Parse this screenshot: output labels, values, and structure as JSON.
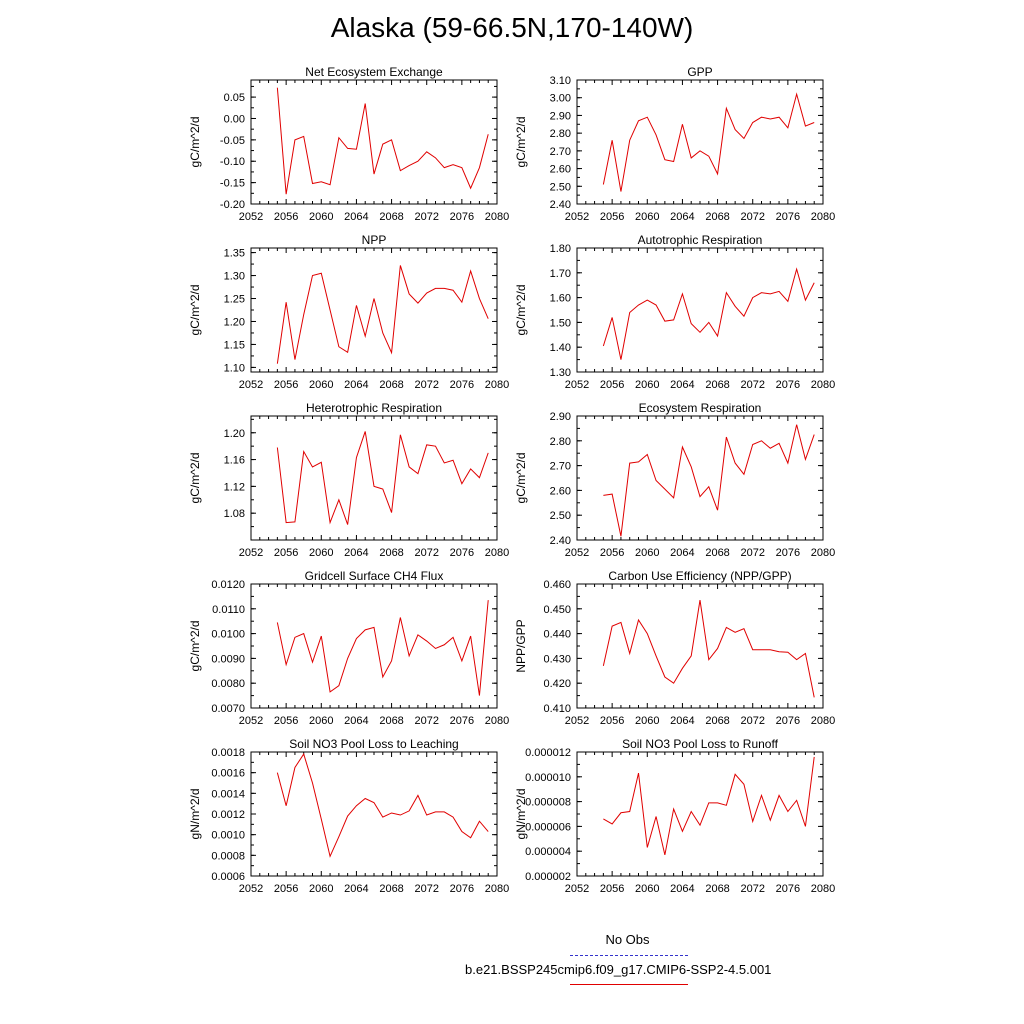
{
  "page": {
    "title": "Alaska (59-66.5N,170-140W)"
  },
  "legend": {
    "entries": [
      {
        "label": "No Obs",
        "color": "#3333cc",
        "style": "dashed"
      },
      {
        "label": "b.e21.BSSP245cmip6.f09_g17.CMIP6-SSP2-4.5.001",
        "color": "#e00000",
        "style": "solid"
      }
    ]
  },
  "chart_data": [
    {
      "type": "line",
      "title": "Net Ecosystem Exchange",
      "ylabel": "gC/m^2/d",
      "xlim": [
        2052,
        2080
      ],
      "ylim": [
        -0.2,
        0.09
      ],
      "xticks": [
        "2052",
        "2056",
        "2060",
        "2064",
        "2068",
        "2072",
        "2076",
        "2080"
      ],
      "yticks": [
        "0.05",
        "0.00",
        "-0.05",
        "-0.10",
        "-0.15",
        "-0.20"
      ],
      "x": [
        2055,
        2056,
        2057,
        2058,
        2059,
        2060,
        2061,
        2062,
        2063,
        2064,
        2065,
        2066,
        2067,
        2068,
        2069,
        2070,
        2071,
        2072,
        2073,
        2074,
        2075,
        2076,
        2077,
        2078,
        2079
      ],
      "series": [
        {
          "color": "#e00000",
          "values": [
            0.072,
            -0.177,
            -0.05,
            -0.042,
            -0.152,
            -0.148,
            -0.155,
            -0.045,
            -0.07,
            -0.072,
            0.035,
            -0.13,
            -0.06,
            -0.05,
            -0.122,
            -0.11,
            -0.1,
            -0.078,
            -0.092,
            -0.115,
            -0.108,
            -0.115,
            -0.163,
            -0.115,
            -0.037
          ]
        }
      ]
    },
    {
      "type": "line",
      "title": "GPP",
      "ylabel": "gC/m^2/d",
      "xlim": [
        2052,
        2080
      ],
      "ylim": [
        2.4,
        3.1
      ],
      "xticks": [
        "2052",
        "2056",
        "2060",
        "2064",
        "2068",
        "2072",
        "2076",
        "2080"
      ],
      "yticks": [
        "3.10",
        "3.00",
        "2.90",
        "2.80",
        "2.70",
        "2.60",
        "2.50",
        "2.40"
      ],
      "x": [
        2055,
        2056,
        2057,
        2058,
        2059,
        2060,
        2061,
        2062,
        2063,
        2064,
        2065,
        2066,
        2067,
        2068,
        2069,
        2070,
        2071,
        2072,
        2073,
        2074,
        2075,
        2076,
        2077,
        2078,
        2079
      ],
      "series": [
        {
          "color": "#e00000",
          "values": [
            2.51,
            2.76,
            2.47,
            2.76,
            2.87,
            2.89,
            2.79,
            2.65,
            2.64,
            2.85,
            2.66,
            2.7,
            2.67,
            2.57,
            2.94,
            2.82,
            2.77,
            2.86,
            2.89,
            2.88,
            2.89,
            2.83,
            3.02,
            2.84,
            2.86
          ]
        }
      ]
    },
    {
      "type": "line",
      "title": "NPP",
      "ylabel": "gC/m^2/d",
      "xlim": [
        2052,
        2080
      ],
      "ylim": [
        1.09,
        1.36
      ],
      "xticks": [
        "2052",
        "2056",
        "2060",
        "2064",
        "2068",
        "2072",
        "2076",
        "2080"
      ],
      "yticks": [
        "1.35",
        "1.30",
        "1.25",
        "1.20",
        "1.15",
        "1.10"
      ],
      "x": [
        2055,
        2056,
        2057,
        2058,
        2059,
        2060,
        2061,
        2062,
        2063,
        2064,
        2065,
        2066,
        2067,
        2068,
        2069,
        2070,
        2071,
        2072,
        2073,
        2074,
        2075,
        2076,
        2077,
        2078,
        2079
      ],
      "series": [
        {
          "color": "#e00000",
          "values": [
            1.108,
            1.242,
            1.117,
            1.215,
            1.3,
            1.305,
            1.225,
            1.145,
            1.133,
            1.235,
            1.168,
            1.25,
            1.175,
            1.132,
            1.322,
            1.26,
            1.24,
            1.262,
            1.272,
            1.272,
            1.268,
            1.242,
            1.31,
            1.25,
            1.206
          ]
        }
      ]
    },
    {
      "type": "line",
      "title": "Autotrophic Respiration",
      "ylabel": "gC/m^2/d",
      "xlim": [
        2052,
        2080
      ],
      "ylim": [
        1.3,
        1.8
      ],
      "xticks": [
        "2052",
        "2056",
        "2060",
        "2064",
        "2068",
        "2072",
        "2076",
        "2080"
      ],
      "yticks": [
        "1.80",
        "1.70",
        "1.60",
        "1.50",
        "1.40",
        "1.30"
      ],
      "x": [
        2055,
        2056,
        2057,
        2058,
        2059,
        2060,
        2061,
        2062,
        2063,
        2064,
        2065,
        2066,
        2067,
        2068,
        2069,
        2070,
        2071,
        2072,
        2073,
        2074,
        2075,
        2076,
        2077,
        2078,
        2079
      ],
      "series": [
        {
          "color": "#e00000",
          "values": [
            1.405,
            1.52,
            1.35,
            1.54,
            1.57,
            1.59,
            1.57,
            1.505,
            1.51,
            1.615,
            1.495,
            1.46,
            1.5,
            1.445,
            1.62,
            1.565,
            1.525,
            1.6,
            1.62,
            1.615,
            1.625,
            1.585,
            1.715,
            1.59,
            1.66
          ]
        }
      ]
    },
    {
      "type": "line",
      "title": "Heterotrophic Respiration",
      "ylabel": "gC/m^2/d",
      "xlim": [
        2052,
        2080
      ],
      "ylim": [
        1.04,
        1.225
      ],
      "xticks": [
        "2052",
        "2056",
        "2060",
        "2064",
        "2068",
        "2072",
        "2076",
        "2080"
      ],
      "yticks": [
        "1.20",
        "1.16",
        "1.12",
        "1.08"
      ],
      "x": [
        2055,
        2056,
        2057,
        2058,
        2059,
        2060,
        2061,
        2062,
        2063,
        2064,
        2065,
        2066,
        2067,
        2068,
        2069,
        2070,
        2071,
        2072,
        2073,
        2074,
        2075,
        2076,
        2077,
        2078,
        2079
      ],
      "series": [
        {
          "color": "#e00000",
          "values": [
            1.178,
            1.066,
            1.067,
            1.172,
            1.149,
            1.156,
            1.066,
            1.1,
            1.063,
            1.163,
            1.202,
            1.12,
            1.116,
            1.081,
            1.197,
            1.149,
            1.139,
            1.182,
            1.18,
            1.155,
            1.159,
            1.124,
            1.146,
            1.133,
            1.17
          ]
        }
      ]
    },
    {
      "type": "line",
      "title": "Ecosystem Respiration",
      "ylabel": "gC/m^2/d",
      "xlim": [
        2052,
        2080
      ],
      "ylim": [
        2.4,
        2.9
      ],
      "xticks": [
        "2052",
        "2056",
        "2060",
        "2064",
        "2068",
        "2072",
        "2076",
        "2080"
      ],
      "yticks": [
        "2.90",
        "2.80",
        "2.70",
        "2.60",
        "2.50",
        "2.40"
      ],
      "x": [
        2055,
        2056,
        2057,
        2058,
        2059,
        2060,
        2061,
        2062,
        2063,
        2064,
        2065,
        2066,
        2067,
        2068,
        2069,
        2070,
        2071,
        2072,
        2073,
        2074,
        2075,
        2076,
        2077,
        2078,
        2079
      ],
      "series": [
        {
          "color": "#e00000",
          "values": [
            2.58,
            2.585,
            2.415,
            2.71,
            2.715,
            2.745,
            2.64,
            2.605,
            2.57,
            2.775,
            2.695,
            2.575,
            2.615,
            2.52,
            2.815,
            2.71,
            2.665,
            2.785,
            2.8,
            2.77,
            2.79,
            2.71,
            2.865,
            2.725,
            2.825
          ]
        }
      ]
    },
    {
      "type": "line",
      "title": "Gridcell Surface CH4 Flux",
      "ylabel": "gC/m^2/d",
      "xlim": [
        2052,
        2080
      ],
      "ylim": [
        0.007,
        0.012
      ],
      "xticks": [
        "2052",
        "2056",
        "2060",
        "2064",
        "2068",
        "2072",
        "2076",
        "2080"
      ],
      "yticks": [
        "0.0120",
        "0.0110",
        "0.0100",
        "0.0090",
        "0.0080",
        "0.0070"
      ],
      "x": [
        2055,
        2056,
        2057,
        2058,
        2059,
        2060,
        2061,
        2062,
        2063,
        2064,
        2065,
        2066,
        2067,
        2068,
        2069,
        2070,
        2071,
        2072,
        2073,
        2074,
        2075,
        2076,
        2077,
        2078,
        2079
      ],
      "series": [
        {
          "color": "#e00000",
          "values": [
            0.01045,
            0.00875,
            0.00985,
            0.01,
            0.00885,
            0.0099,
            0.00765,
            0.0079,
            0.009,
            0.0098,
            0.01015,
            0.01025,
            0.00825,
            0.0089,
            0.01065,
            0.0091,
            0.00995,
            0.0097,
            0.0094,
            0.00955,
            0.00985,
            0.0089,
            0.0099,
            0.0075,
            0.01135
          ]
        }
      ]
    },
    {
      "type": "line",
      "title": "Carbon Use Efficiency (NPP/GPP)",
      "ylabel": "NPP/GPP",
      "xlim": [
        2052,
        2080
      ],
      "ylim": [
        0.41,
        0.46
      ],
      "xticks": [
        "2052",
        "2056",
        "2060",
        "2064",
        "2068",
        "2072",
        "2076",
        "2080"
      ],
      "yticks": [
        "0.460",
        "0.450",
        "0.440",
        "0.430",
        "0.420",
        "0.410"
      ],
      "x": [
        2055,
        2056,
        2057,
        2058,
        2059,
        2060,
        2061,
        2062,
        2063,
        2064,
        2065,
        2066,
        2067,
        2068,
        2069,
        2070,
        2071,
        2072,
        2073,
        2074,
        2075,
        2076,
        2077,
        2078,
        2079
      ],
      "series": [
        {
          "color": "#e00000",
          "values": [
            0.427,
            0.443,
            0.4445,
            0.432,
            0.4455,
            0.44,
            0.431,
            0.4225,
            0.42,
            0.426,
            0.431,
            0.4535,
            0.4295,
            0.434,
            0.4425,
            0.4405,
            0.442,
            0.4335,
            0.4335,
            0.4335,
            0.4327,
            0.4325,
            0.4295,
            0.432,
            0.4143
          ]
        }
      ]
    },
    {
      "type": "line",
      "title": "Soil NO3 Pool Loss to Leaching",
      "ylabel": "gN/m^2/d",
      "xlim": [
        2052,
        2080
      ],
      "ylim": [
        0.0006,
        0.0018
      ],
      "xticks": [
        "2052",
        "2056",
        "2060",
        "2064",
        "2068",
        "2072",
        "2076",
        "2080"
      ],
      "yticks": [
        "0.0018",
        "0.0016",
        "0.0014",
        "0.0012",
        "0.0010",
        "0.0008",
        "0.0006"
      ],
      "x": [
        2055,
        2056,
        2057,
        2058,
        2059,
        2060,
        2061,
        2062,
        2063,
        2064,
        2065,
        2066,
        2067,
        2068,
        2069,
        2070,
        2071,
        2072,
        2073,
        2074,
        2075,
        2076,
        2077,
        2078,
        2079
      ],
      "series": [
        {
          "color": "#e00000",
          "values": [
            0.0016,
            0.00128,
            0.00165,
            0.00178,
            0.0015,
            0.00115,
            0.00079,
            0.00098,
            0.00118,
            0.00128,
            0.00135,
            0.00131,
            0.00117,
            0.00121,
            0.00119,
            0.00123,
            0.00138,
            0.00119,
            0.00122,
            0.00122,
            0.00117,
            0.00103,
            0.00097,
            0.00113,
            0.00103
          ]
        }
      ]
    },
    {
      "type": "line",
      "title": "Soil NO3 Pool Loss to Runoff",
      "ylabel": "gN/m^2/d",
      "xlim": [
        2052,
        2080
      ],
      "ylim": [
        2e-06,
        1.2e-05
      ],
      "xticks": [
        "2052",
        "2056",
        "2060",
        "2064",
        "2068",
        "2072",
        "2076",
        "2080"
      ],
      "yticks": [
        "0.000012",
        "0.000010",
        "0.000008",
        "0.000006",
        "0.000004",
        "0.000002"
      ],
      "x": [
        2055,
        2056,
        2057,
        2058,
        2059,
        2060,
        2061,
        2062,
        2063,
        2064,
        2065,
        2066,
        2067,
        2068,
        2069,
        2070,
        2071,
        2072,
        2073,
        2074,
        2075,
        2076,
        2077,
        2078,
        2079
      ],
      "series": [
        {
          "color": "#e00000",
          "values": [
            6.6e-06,
            6.2e-06,
            7.1e-06,
            7.2e-06,
            1.03e-05,
            4.3e-06,
            6.8e-06,
            3.7e-06,
            7.4e-06,
            5.6e-06,
            7.2e-06,
            6.1e-06,
            7.9e-06,
            7.9e-06,
            7.7e-06,
            1.02e-05,
            9.4e-06,
            6.4e-06,
            8.5e-06,
            6.5e-06,
            8.5e-06,
            7.2e-06,
            8.1e-06,
            6e-06,
            1.16e-05
          ]
        }
      ]
    }
  ]
}
